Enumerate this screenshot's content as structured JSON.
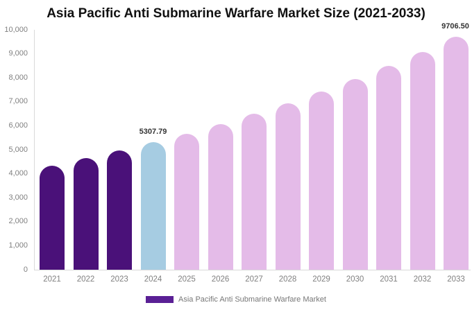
{
  "title": "Asia Pacific Anti Submarine Warfare Market Size (2021-2033)",
  "chart_data": {
    "type": "bar",
    "title": "Asia Pacific Anti Submarine Warfare Market Size (2021-2033)",
    "categories": [
      "2021",
      "2022",
      "2023",
      "2024",
      "2025",
      "2026",
      "2027",
      "2028",
      "2029",
      "2030",
      "2031",
      "2032",
      "2033"
    ],
    "values": [
      4340,
      4642,
      4963,
      5307.79,
      5676,
      6070,
      6491,
      6942,
      7423,
      7938,
      8489,
      9077,
      9706.5
    ],
    "value_labels": [
      {
        "category": "2024",
        "text": "5307.79"
      },
      {
        "category": "2033",
        "text": "9706.50"
      }
    ],
    "xlabel": "",
    "ylabel": "",
    "ylim": [
      0,
      10000
    ],
    "ytick_values": [
      0,
      1000,
      2000,
      3000,
      4000,
      5000,
      6000,
      7000,
      8000,
      9000,
      10000
    ],
    "ytick_labels": [
      "0",
      "1,000",
      "2,000",
      "3,000",
      "4,000",
      "5,000",
      "6,000",
      "7,000",
      "8,000",
      "9,000",
      "10,000"
    ],
    "grid": false,
    "legend": {
      "position": "bottom",
      "entries": [
        {
          "label": "Asia Pacific Anti Submarine Warfare Market",
          "color": "#5A2095"
        }
      ]
    },
    "bar_colors": [
      "#4A1179",
      "#4A1179",
      "#4A1179",
      "#A6CCE2",
      "#E4BBE8",
      "#E4BBE8",
      "#E4BBE8",
      "#E4BBE8",
      "#E4BBE8",
      "#E4BBE8",
      "#E4BBE8",
      "#E4BBE8",
      "#E4BBE8"
    ]
  },
  "colors": {
    "background": "#FFFFFF",
    "title_text": "#111111",
    "axis_label_text": "#808080",
    "annotation_text": "#333333",
    "legend_text": "#777777",
    "axis_line": "#D9D9D9",
    "historical_bar": "#4A1179",
    "base_year_bar": "#A6CCE2",
    "forecast_bar": "#E4BBE8"
  }
}
